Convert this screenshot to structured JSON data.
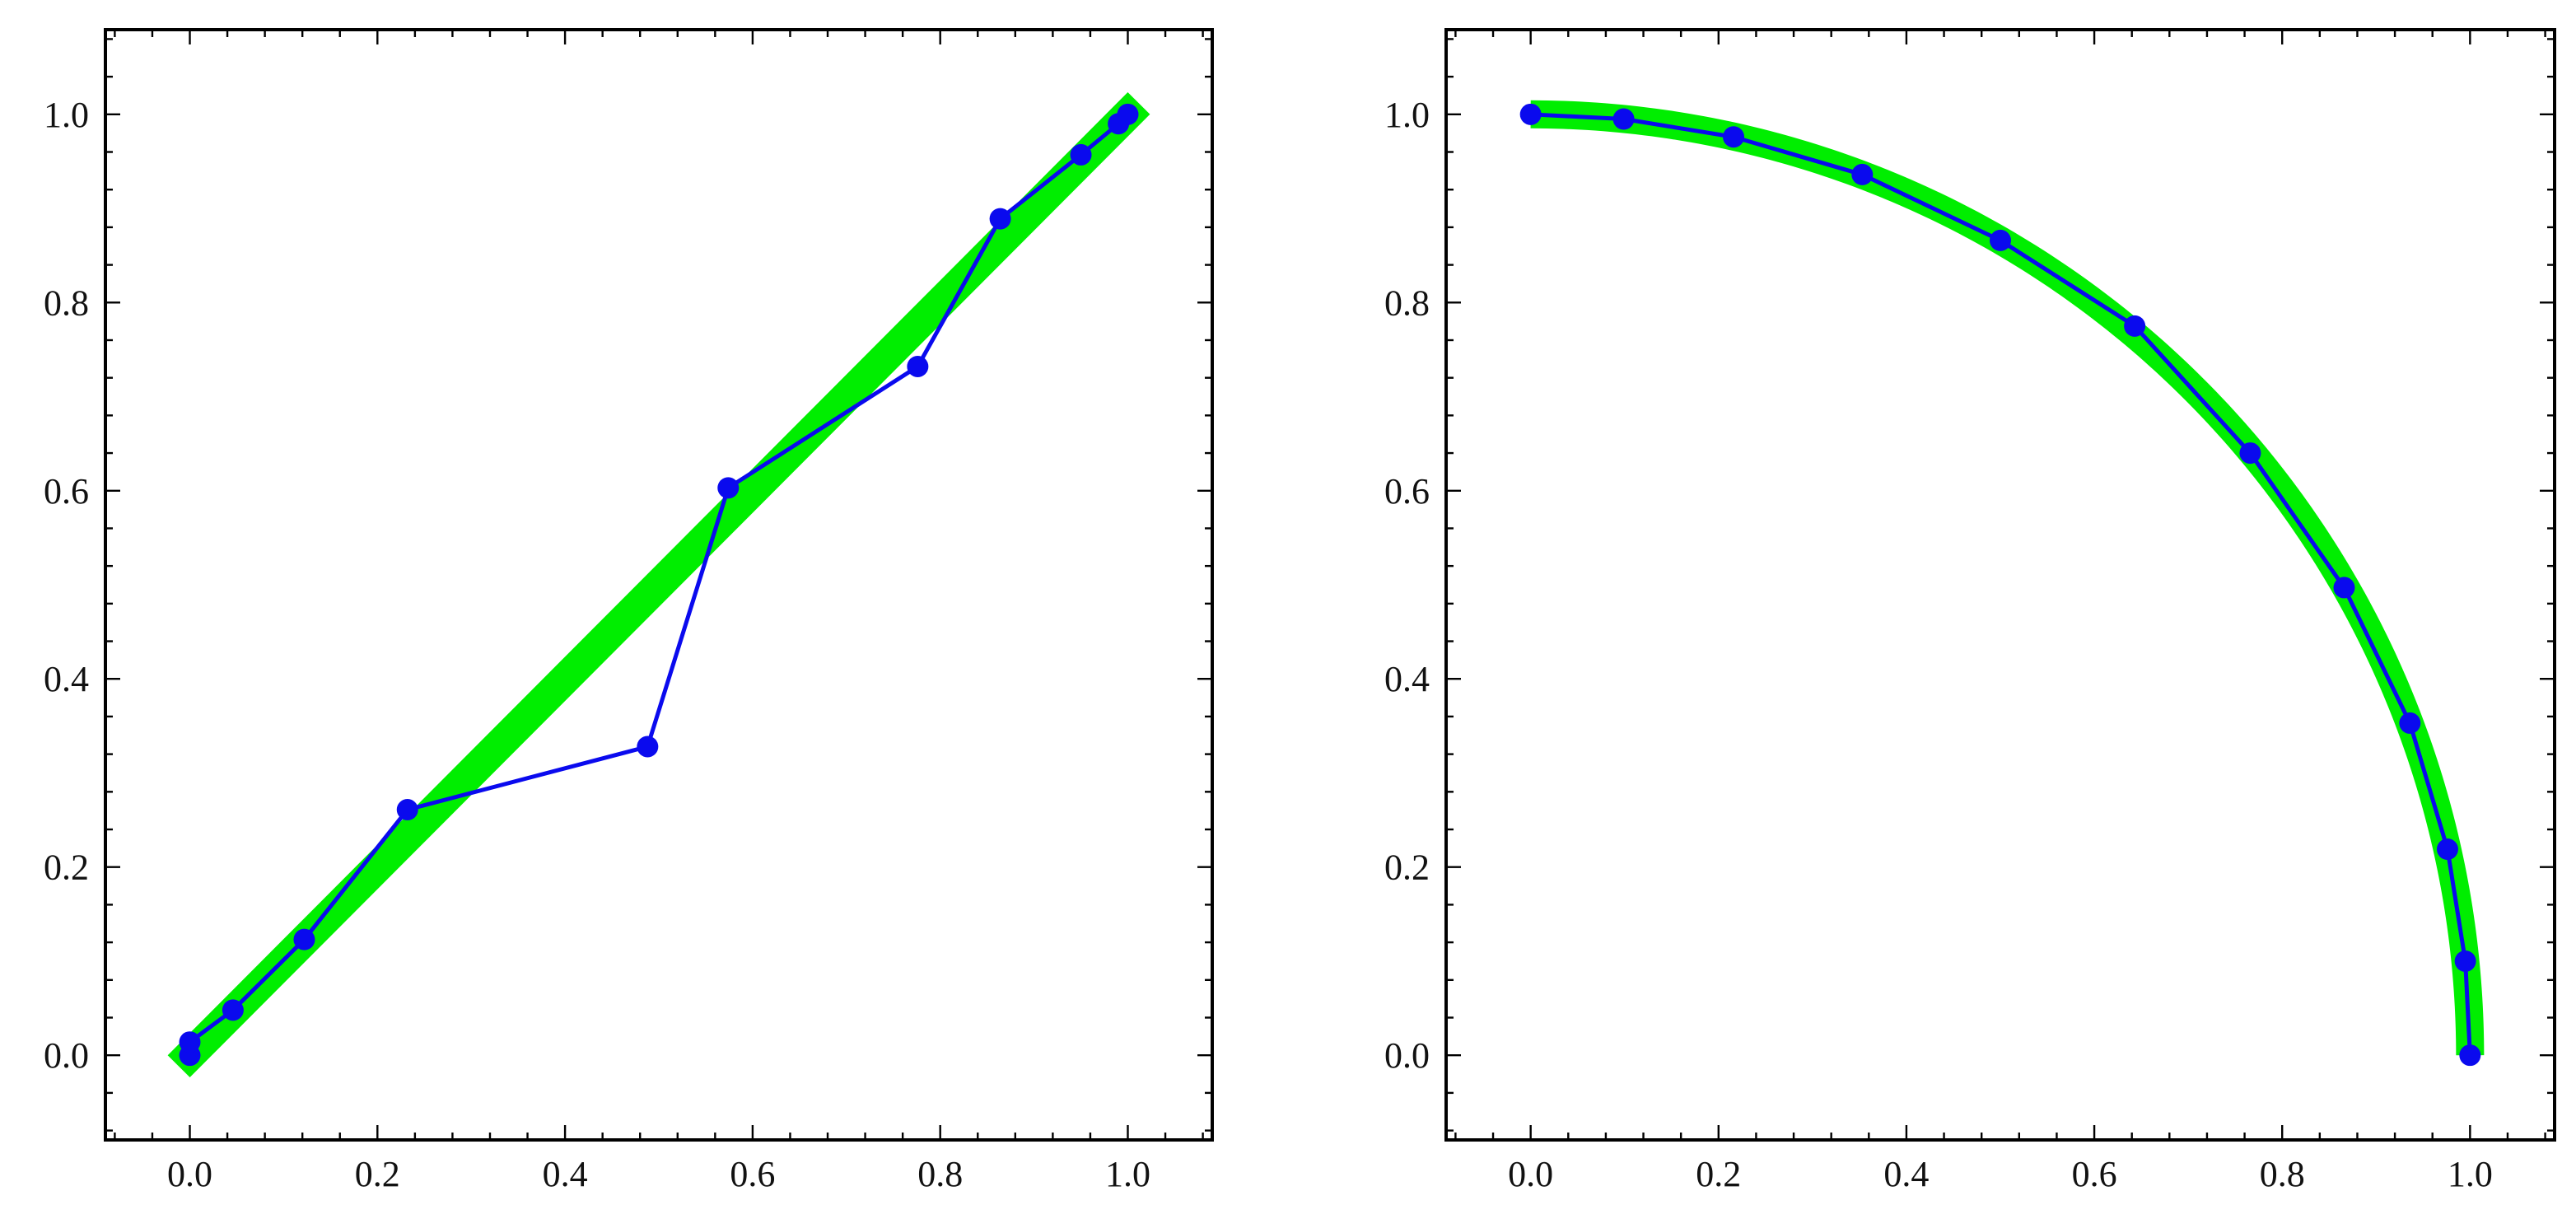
{
  "colors": {
    "reference": "#00ee00",
    "series": "#0a0aee",
    "frame": "#000000",
    "background": "#ffffff"
  },
  "chart_data": [
    {
      "type": "line",
      "title": "",
      "xlabel": "",
      "ylabel": "",
      "xlim": [
        -0.09,
        1.09
      ],
      "ylim": [
        -0.09,
        1.09
      ],
      "xticks": [
        0.0,
        0.2,
        0.4,
        0.6,
        0.8,
        1.0
      ],
      "yticks": [
        0.0,
        0.2,
        0.4,
        0.6,
        0.8,
        1.0
      ],
      "xtick_labels": [
        "0.0",
        "0.2",
        "0.4",
        "0.6",
        "0.8",
        "1.0"
      ],
      "ytick_labels": [
        "0.0",
        "0.2",
        "0.4",
        "0.6",
        "0.8",
        "1.0"
      ],
      "grid": false,
      "series": [
        {
          "role": "reference",
          "color": "#00ee00",
          "x": [
            0.0,
            1.0
          ],
          "y": [
            0.0,
            1.0
          ]
        },
        {
          "role": "points",
          "color": "#0a0aee",
          "x": [
            0.0,
            0.0,
            0.046,
            0.122,
            0.232,
            0.488,
            0.574,
            0.776,
            0.864,
            0.95,
            0.99,
            1.0
          ],
          "y": [
            0.0,
            0.014,
            0.048,
            0.123,
            0.261,
            0.328,
            0.603,
            0.732,
            0.889,
            0.957,
            0.99,
            1.0
          ]
        }
      ]
    },
    {
      "type": "line",
      "title": "",
      "xlabel": "",
      "ylabel": "",
      "xlim": [
        -0.09,
        1.09
      ],
      "ylim": [
        -0.09,
        1.09
      ],
      "xticks": [
        0.0,
        0.2,
        0.4,
        0.6,
        0.8,
        1.0
      ],
      "yticks": [
        0.0,
        0.2,
        0.4,
        0.6,
        0.8,
        1.0
      ],
      "xtick_labels": [
        "0.0",
        "0.2",
        "0.4",
        "0.6",
        "0.8",
        "1.0"
      ],
      "ytick_labels": [
        "0.0",
        "0.2",
        "0.4",
        "0.6",
        "0.8",
        "1.0"
      ],
      "grid": false,
      "series": [
        {
          "role": "reference-arc",
          "color": "#00ee00",
          "description_of_curve": "quarter circle x^2 + y^2 = 1",
          "theta_range_degrees": [
            0,
            90
          ]
        },
        {
          "role": "points",
          "color": "#0a0aee",
          "x": [
            0.0,
            0.099,
            0.216,
            0.353,
            0.5,
            0.643,
            0.766,
            0.866,
            0.936,
            0.976,
            0.995,
            1.0
          ],
          "y": [
            1.0,
            0.995,
            0.976,
            0.936,
            0.866,
            0.775,
            0.64,
            0.497,
            0.353,
            0.219,
            0.1,
            0.0
          ]
        }
      ]
    }
  ]
}
